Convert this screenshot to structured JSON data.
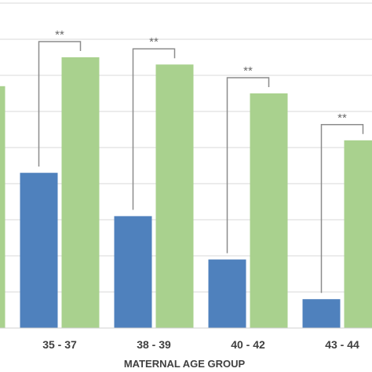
{
  "chart_data": {
    "type": "bar",
    "xlabel": "MATERNAL AGE GROUP",
    "ylabel": "",
    "ylim": [
      0,
      9
    ],
    "grid": true,
    "categories": [
      "",
      "35 - 37",
      "38 - 39",
      "40 - 42",
      "43 - 44"
    ],
    "series": [
      {
        "color": "#4f81bd",
        "values": [
          null,
          4.3,
          3.1,
          1.9,
          0.8
        ]
      },
      {
        "color": "#a9d18e",
        "values": [
          6.7,
          7.5,
          7.3,
          6.5,
          5.2
        ]
      }
    ],
    "significance": [
      {
        "category": "35 - 37",
        "label": "**"
      },
      {
        "category": "38 - 39",
        "label": "**"
      },
      {
        "category": "40 - 42",
        "label": "**"
      },
      {
        "category": "43 - 44",
        "label": "**"
      }
    ]
  }
}
